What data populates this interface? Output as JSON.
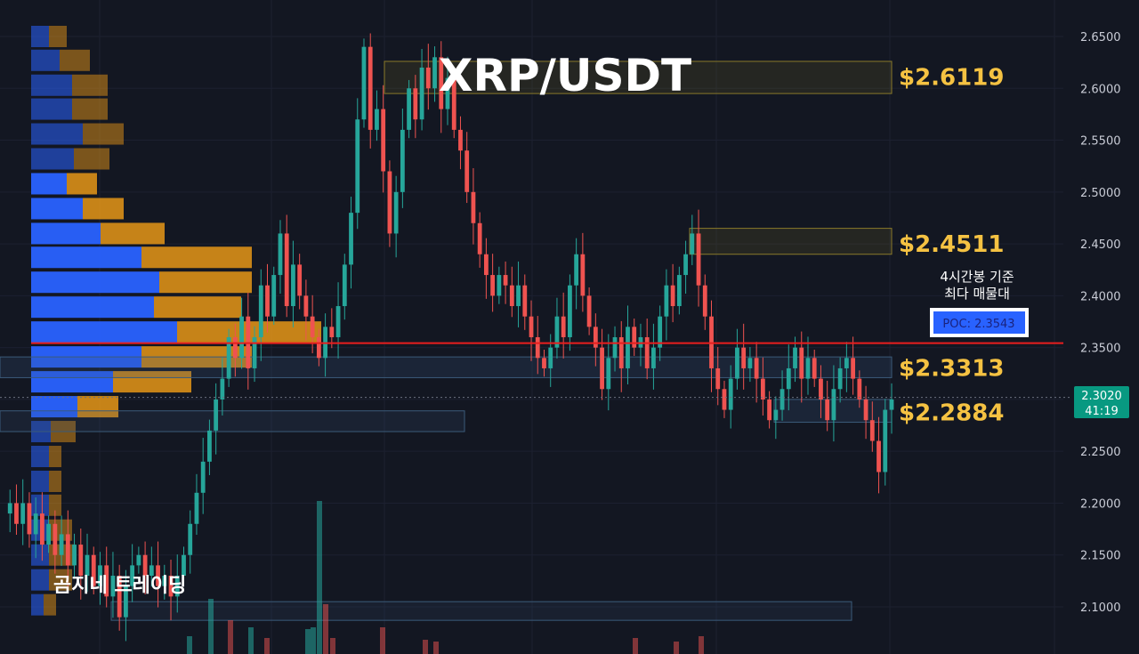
{
  "title": "XRP/USDT",
  "watermark": "곰지네 트레이딩",
  "annotation": {
    "line1": "4시간봉 기준",
    "line2": "최다 매물대"
  },
  "poc": {
    "label": "POC: 2.3543",
    "value": 2.3543
  },
  "last_price": {
    "value": "2.3020",
    "countdown": "41:19"
  },
  "zones": [
    {
      "label": "$2.6119",
      "low": 2.595,
      "high": 2.626
    },
    {
      "label": "$2.4511",
      "low": 2.44,
      "high": 2.465
    },
    {
      "label": "$2.3313",
      "low": 2.321,
      "high": 2.341
    },
    {
      "label": "$2.2884",
      "low": 2.278,
      "high": 2.3
    }
  ],
  "colors": {
    "bg": "#131722",
    "up": "#26a69a",
    "down": "#ef5350",
    "vp_buy": "#2962ff",
    "vp_sell": "#f29d16",
    "poc_line": "#e91e1e",
    "zone_label": "#f5c242"
  },
  "chart_data": {
    "type": "candlestick",
    "title": "XRP/USDT",
    "ylim": [
      2.08,
      2.66
    ],
    "yticks": [
      "2.6500",
      "2.6000",
      "2.5500",
      "2.5000",
      "2.4500",
      "2.4000",
      "2.3500",
      "2.3000",
      "2.2500",
      "2.2000",
      "2.1500",
      "2.1000"
    ],
    "price_path": [
      2.19,
      2.2,
      2.18,
      2.2,
      2.17,
      2.19,
      2.16,
      2.18,
      2.15,
      2.17,
      2.14,
      2.16,
      2.13,
      2.15,
      2.12,
      2.14,
      2.11,
      2.13,
      2.09,
      2.12,
      2.14,
      2.15,
      2.13,
      2.14,
      2.12,
      2.13,
      2.11,
      2.13,
      2.15,
      2.18,
      2.21,
      2.24,
      2.27,
      2.3,
      2.32,
      2.36,
      2.34,
      2.38,
      2.33,
      2.36,
      2.41,
      2.38,
      2.42,
      2.46,
      2.39,
      2.43,
      2.4,
      2.38,
      2.36,
      2.34,
      2.37,
      2.36,
      2.39,
      2.43,
      2.48,
      2.57,
      2.64,
      2.56,
      2.58,
      2.52,
      2.46,
      2.5,
      2.56,
      2.6,
      2.57,
      2.62,
      2.6,
      2.63,
      2.58,
      2.61,
      2.56,
      2.54,
      2.5,
      2.47,
      2.44,
      2.42,
      2.4,
      2.42,
      2.41,
      2.39,
      2.41,
      2.38,
      2.36,
      2.34,
      2.33,
      2.35,
      2.38,
      2.36,
      2.41,
      2.44,
      2.4,
      2.37,
      2.35,
      2.31,
      2.34,
      2.36,
      2.33,
      2.37,
      2.35,
      2.36,
      2.33,
      2.35,
      2.38,
      2.41,
      2.39,
      2.42,
      2.44,
      2.46,
      2.41,
      2.38,
      2.33,
      2.31,
      2.29,
      2.32,
      2.35,
      2.33,
      2.34,
      2.32,
      2.3,
      2.28,
      2.29,
      2.31,
      2.33,
      2.35,
      2.32,
      2.34,
      2.32,
      2.3,
      2.28,
      2.31,
      2.33,
      2.34,
      2.32,
      2.3,
      2.28,
      2.26,
      2.23,
      2.29,
      2.3
    ],
    "volume_profile": {
      "levels": [
        2.65,
        2.627,
        2.603,
        2.58,
        2.556,
        2.532,
        2.508,
        2.484,
        2.46,
        2.437,
        2.413,
        2.389,
        2.365,
        2.341,
        2.317,
        2.293,
        2.269,
        2.245,
        2.221,
        2.198,
        2.174,
        2.15,
        2.126,
        2.102
      ],
      "buy": [
        20,
        32,
        46,
        46,
        58,
        48,
        40,
        58,
        78,
        124,
        144,
        138,
        164,
        124,
        92,
        52,
        22,
        20,
        20,
        20,
        20,
        20,
        20,
        14
      ],
      "sell": [
        20,
        34,
        40,
        40,
        46,
        40,
        34,
        46,
        72,
        124,
        104,
        98,
        162,
        124,
        88,
        46,
        28,
        14,
        14,
        14,
        26,
        28,
        26,
        14
      ]
    },
    "volume_bars": [
      {
        "x": 213,
        "h": 20,
        "up": true
      },
      {
        "x": 237,
        "h": 62,
        "up": true
      },
      {
        "x": 259,
        "h": 38,
        "up": false
      },
      {
        "x": 282,
        "h": 30,
        "up": true
      },
      {
        "x": 300,
        "h": 18,
        "up": false
      },
      {
        "x": 346,
        "h": 28,
        "up": true
      },
      {
        "x": 352,
        "h": 30,
        "up": true
      },
      {
        "x": 359,
        "h": 172,
        "up": true
      },
      {
        "x": 366,
        "h": 56,
        "up": false
      },
      {
        "x": 374,
        "h": 18,
        "up": false
      },
      {
        "x": 430,
        "h": 30,
        "up": false
      },
      {
        "x": 478,
        "h": 16,
        "up": false
      },
      {
        "x": 490,
        "h": 14,
        "up": false
      },
      {
        "x": 714,
        "h": 18,
        "up": false
      },
      {
        "x": 760,
        "h": 14,
        "up": false
      },
      {
        "x": 788,
        "h": 20,
        "up": false
      }
    ]
  }
}
